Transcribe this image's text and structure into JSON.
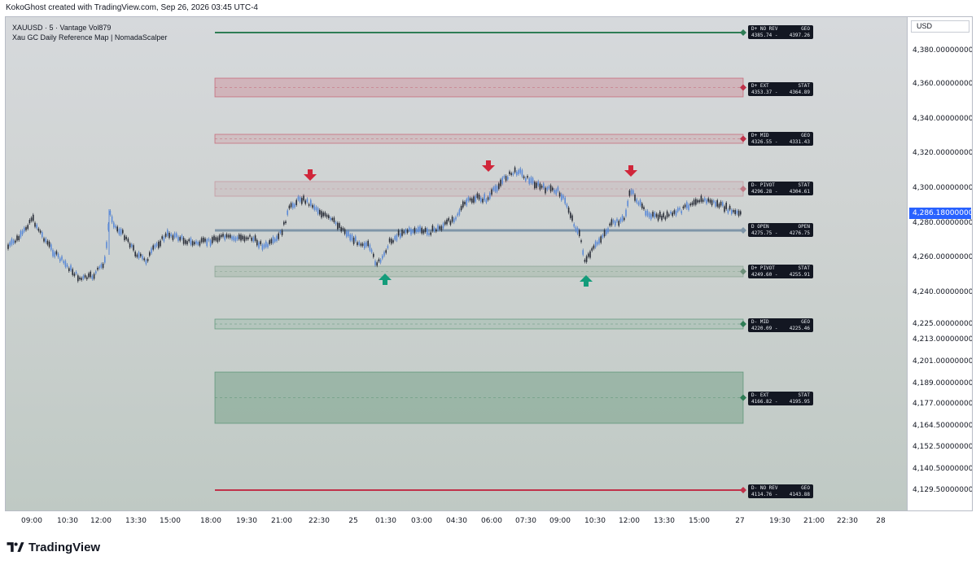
{
  "header": {
    "caption": "KokoGhost created with TradingView.com, Sep 26, 2026 03:45 UTC-4"
  },
  "legend": {
    "symbol_line": "XAUUSD · 5 · Vantage  Vol879",
    "indicator_line": "Xau GC Daily Reference Map | NomadaScalper"
  },
  "price_axis": {
    "currency": "USD",
    "current_price": "4,286.18000000",
    "labels": [
      "4,380.00000000",
      "4,360.00000000",
      "4,340.00000000",
      "4,320.00000000",
      "4,300.00000000",
      "4,280.00000000",
      "4,260.00000000",
      "4,240.00000000",
      "4,225.00000000",
      "4,213.00000000",
      "4,201.00000000",
      "4,189.00000000",
      "4,177.00000000",
      "4,164.50000000",
      "4,152.50000000",
      "4,140.50000000",
      "4,129.50000000"
    ]
  },
  "time_axis": {
    "labels": [
      "09:00",
      "10:30",
      "12:00",
      "13:30",
      "15:00",
      "18:00",
      "19:30",
      "21:00",
      "22:30",
      "25",
      "01:30",
      "03:00",
      "04:30",
      "06:00",
      "07:30",
      "09:00",
      "10:30",
      "12:00",
      "13:30",
      "15:00",
      "27",
      "19:30",
      "21:00",
      "22:30",
      "28"
    ]
  },
  "levels": [
    {
      "name": "D+ NO REV",
      "tag": "GEO",
      "low": "4385.74 -",
      "high": "4397.26",
      "color": "#2e7d55"
    },
    {
      "name": "D+ EXT",
      "tag": "STAT",
      "low": "4353.37 -",
      "high": "4364.89",
      "color": "#c0324a"
    },
    {
      "name": "D+ MID",
      "tag": "GEO",
      "low": "4326.55 -",
      "high": "4331.43",
      "color": "#c0324a"
    },
    {
      "name": "D- PIVOT",
      "tag": "STAT",
      "low": "4296.28 -",
      "high": "4304.61",
      "color": "#c07a86"
    },
    {
      "name": "D OPEN",
      "tag": "OPEN",
      "low": "4275.75 -",
      "high": "4276.75",
      "color": "#7f95a8"
    },
    {
      "name": "D+ PIVOT",
      "tag": "STAT",
      "low": "4249.60 -",
      "high": "4255.91",
      "color": "#6d8f7a"
    },
    {
      "name": "D- MID",
      "tag": "GEO",
      "low": "4220.09 -",
      "high": "4225.46",
      "color": "#2e7d55"
    },
    {
      "name": "D- EXT",
      "tag": "STAT",
      "low": "4166.82 -",
      "high": "4195.95",
      "color": "#2e7d55"
    },
    {
      "name": "D- NO REV",
      "tag": "GEO",
      "low": "4114.76 -",
      "high": "4143.88",
      "color": "#c0324a"
    }
  ],
  "markers": {
    "down_arrow_color": "#d0263a",
    "up_arrow_color": "#139c7a"
  },
  "footer": {
    "brand": "TradingView"
  }
}
